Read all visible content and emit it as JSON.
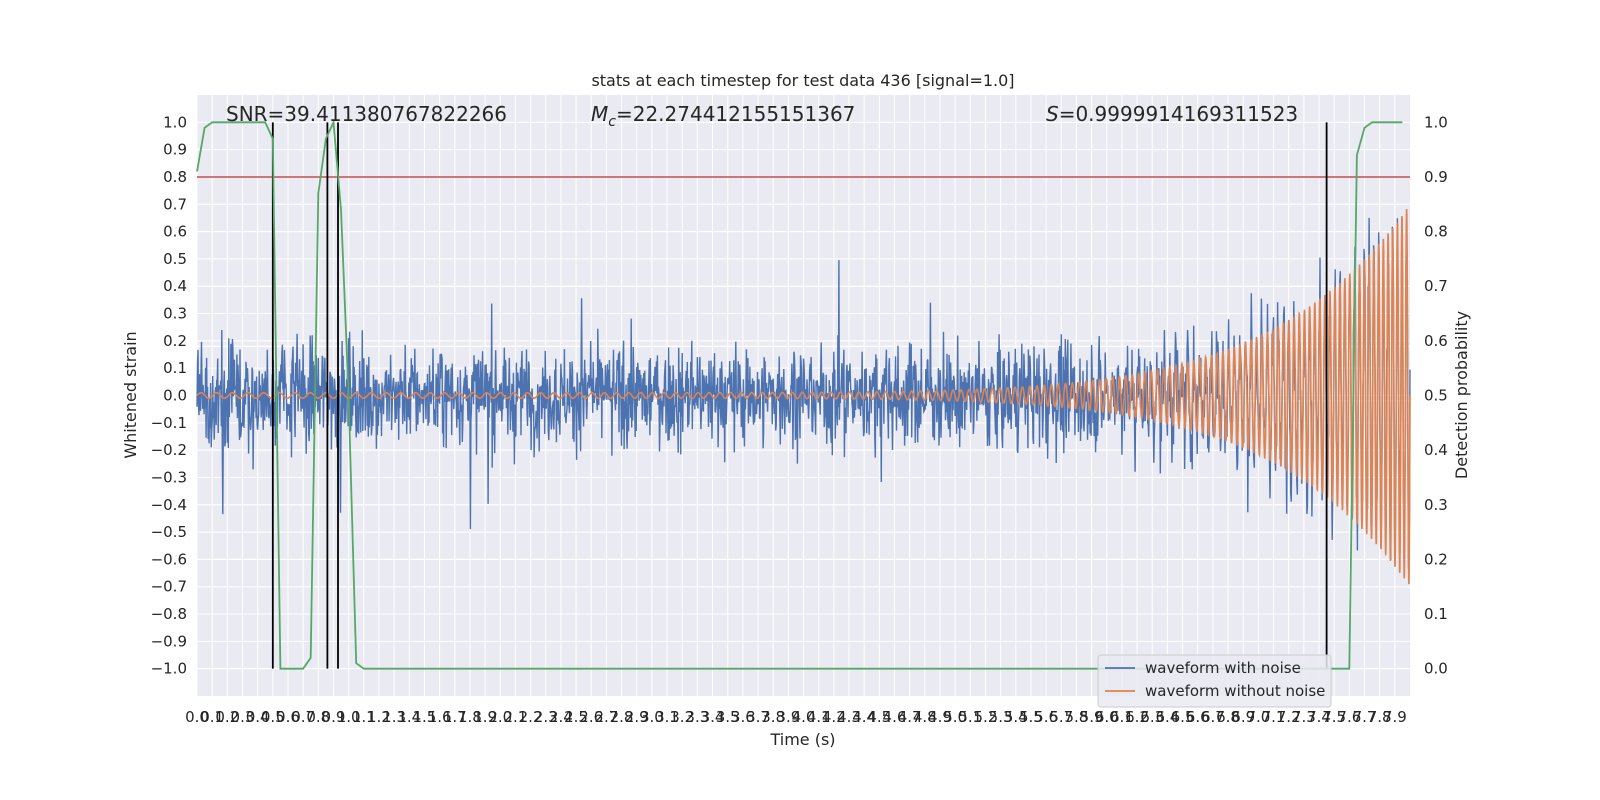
{
  "chart_data": {
    "type": "line",
    "title": "stats at each timestep for test data 436 [signal=1.0]",
    "xlabel": "Time (s)",
    "ylabel": "Whitened strain",
    "y2label": "Detection probability",
    "xlim": [
      0,
      8.0
    ],
    "ylim": [
      -1.1,
      1.1
    ],
    "y2lim": [
      -0.05,
      1.05
    ],
    "x_tick_labels": [
      "0.0",
      "0.1",
      "0.2",
      "0.3",
      "0.4",
      "0.5",
      "0.6",
      "0.7",
      "0.8",
      "0.9",
      "1.0",
      "1.1",
      "1.2",
      "1.3",
      "1.4",
      "1.5",
      "1.6",
      "1.7",
      "1.8",
      "1.9",
      "2.0",
      "2.1",
      "2.2",
      "2.3",
      "2.4",
      "2.5",
      "2.6",
      "2.7",
      "2.8",
      "2.9",
      "3.0",
      "3.1",
      "3.2",
      "3.3",
      "3.4",
      "3.5",
      "3.6",
      "3.7",
      "3.8",
      "3.9",
      "4.0",
      "4.1",
      "4.2",
      "4.3",
      "4.4",
      "4.5",
      "4.6",
      "4.7",
      "4.8",
      "4.9",
      "5.0",
      "5.1",
      "5.2",
      "5.3",
      "5.4",
      "5.5",
      "5.6",
      "5.7",
      "5.8",
      "5.9",
      "6.0",
      "6.1",
      "6.2",
      "6.3",
      "6.4",
      "6.5",
      "6.6",
      "6.7",
      "6.8",
      "6.9",
      "7.0",
      "7.1",
      "7.2",
      "7.3",
      "7.4",
      "7.5",
      "7.6",
      "7.7",
      "7.8",
      "7.9"
    ],
    "y_tick_labels": [
      "1.0",
      "0.9",
      "0.8",
      "0.7",
      "0.6",
      "0.5",
      "0.4",
      "0.3",
      "0.2",
      "0.1",
      "0.0",
      "−0.1",
      "−0.2",
      "−0.3",
      "−0.4",
      "−0.5",
      "−0.6",
      "−0.7",
      "−0.8",
      "−0.9",
      "−1.0"
    ],
    "y2_tick_labels": [
      "1.0",
      "0.9",
      "0.8",
      "0.7",
      "0.6",
      "0.5",
      "0.4",
      "0.3",
      "0.2",
      "0.1",
      "0.0"
    ],
    "annotations": {
      "snr": "SNR=39.411380767822266",
      "mc_symbol": "M",
      "mc_sub": "c",
      "mc_value": "=22.274412155151367",
      "s_symbol": "S",
      "s_value": "=0.9999914169311523"
    },
    "legend": {
      "position": "lower-right",
      "entries": [
        {
          "label": "waveform with noise",
          "color": "#4c72b0"
        },
        {
          "label": "waveform without noise",
          "color": "#dd8452"
        }
      ]
    },
    "threshold_line": {
      "y2": 0.9,
      "color": "#c44e52"
    },
    "white_lines": {
      "y": [
        0.18,
        -0.02
      ]
    },
    "detection_probability": {
      "color": "#55a868",
      "x": [
        0.0,
        0.05,
        0.1,
        0.15,
        0.2,
        0.25,
        0.3,
        0.35,
        0.4,
        0.45,
        0.5,
        0.55,
        0.6,
        0.65,
        0.7,
        0.75,
        0.8,
        0.85,
        0.9,
        0.95,
        1.0,
        1.05,
        1.1,
        1.15,
        1.2,
        7.35,
        7.4,
        7.45,
        7.5,
        7.55,
        7.6,
        7.65,
        7.7,
        7.75,
        7.8,
        7.85,
        7.9,
        7.95
      ],
      "y": [
        0.91,
        0.99,
        1.0,
        1.0,
        1.0,
        1.0,
        1.0,
        1.0,
        1.0,
        1.0,
        0.97,
        0.0,
        0.0,
        0.0,
        0.0,
        0.02,
        0.87,
        0.97,
        1.0,
        0.84,
        0.5,
        0.01,
        0.0,
        0.0,
        0.0,
        0.0,
        0.0,
        0.0,
        0.0,
        0.0,
        0.0,
        0.94,
        0.99,
        1.0,
        1.0,
        1.0,
        1.0,
        1.0
      ]
    },
    "detection_markers_x": [
      0.5,
      0.86,
      0.93,
      7.45
    ],
    "series": [
      {
        "name": "waveform with noise",
        "color": "#4c72b0",
        "amplitude_typical": 0.15,
        "amplitude_peak": 0.58,
        "edge_peak": 0.65
      },
      {
        "name": "waveform without noise",
        "color": "#dd8452",
        "amplitude_start": 0.01,
        "amplitude_end": 0.7,
        "cycles": 140
      }
    ],
    "grid": true
  }
}
